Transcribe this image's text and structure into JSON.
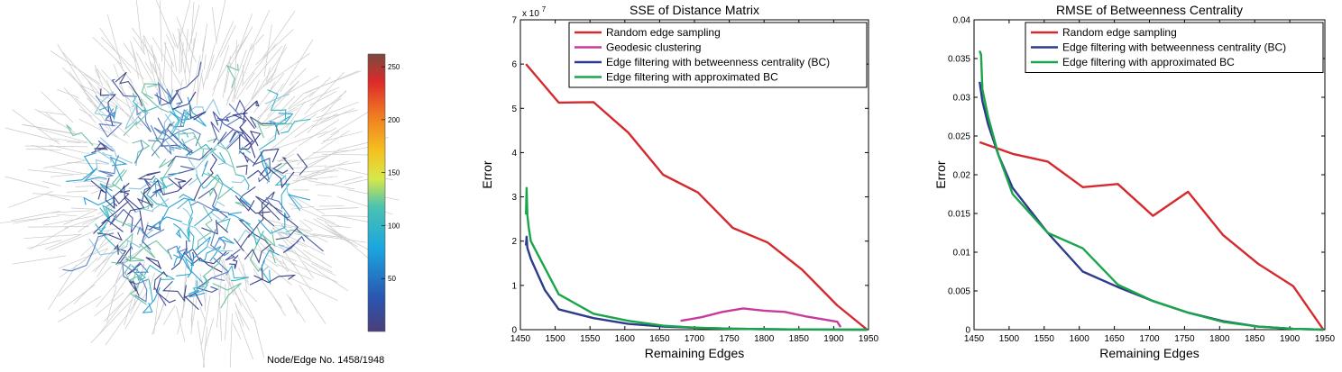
{
  "graph_view": {
    "caption": "Node/Edge No. 1458/1948",
    "colorbar": {
      "ticks": [
        50,
        100,
        150,
        200,
        250
      ],
      "min": 0,
      "max": 262
    }
  },
  "chart_data": [
    {
      "type": "line",
      "title": "SSE of Distance Matrix",
      "xlabel": "Remaining Edges",
      "ylabel": "Error",
      "y_multiplier": "x 10",
      "y_exponent": "7",
      "xlim": [
        1450,
        1950
      ],
      "ylim": [
        0,
        7
      ],
      "xticks": [
        1450,
        1500,
        1550,
        1600,
        1650,
        1700,
        1750,
        1800,
        1850,
        1900,
        1950
      ],
      "yticks": [
        0,
        1,
        2,
        3,
        4,
        5,
        6,
        7
      ],
      "legend_position": "top-right",
      "series": [
        {
          "name": "Random edge sampling",
          "color": "#d42a2f",
          "x": [
            1458,
            1505,
            1555,
            1605,
            1655,
            1705,
            1755,
            1805,
            1855,
            1905,
            1948
          ],
          "y": [
            6.0,
            5.13,
            5.14,
            4.45,
            3.5,
            3.1,
            2.3,
            1.97,
            1.35,
            0.55,
            0.0
          ]
        },
        {
          "name": "Geodesic clustering",
          "color": "#c93a9c",
          "x": [
            1680,
            1710,
            1740,
            1770,
            1800,
            1830,
            1860,
            1890,
            1905,
            1910
          ],
          "y": [
            0.2,
            0.28,
            0.4,
            0.48,
            0.43,
            0.4,
            0.3,
            0.22,
            0.18,
            0.06
          ]
        },
        {
          "name": "Edge filtering with betweenness centrality (BC)",
          "color": "#2e3b8c",
          "x": [
            1458,
            1459,
            1460,
            1465,
            1475,
            1485,
            1505,
            1555,
            1605,
            1655,
            1705,
            1755,
            1805,
            1855,
            1905,
            1948
          ],
          "y": [
            1.9,
            2.1,
            1.85,
            1.6,
            1.25,
            0.9,
            0.46,
            0.26,
            0.13,
            0.07,
            0.04,
            0.02,
            0.01,
            0.005,
            0.002,
            0.0
          ]
        },
        {
          "name": "Edge filtering with approximated BC",
          "color": "#1aa54a",
          "x": [
            1458,
            1459,
            1460,
            1462,
            1465,
            1470,
            1485,
            1505,
            1555,
            1605,
            1655,
            1705,
            1755,
            1805,
            1855,
            1905,
            1948
          ],
          "y": [
            2.6,
            3.2,
            2.6,
            2.3,
            2.0,
            1.85,
            1.4,
            0.8,
            0.36,
            0.2,
            0.09,
            0.04,
            0.02,
            0.01,
            0.005,
            0.002,
            0.0
          ]
        }
      ]
    },
    {
      "type": "line",
      "title": "RMSE of Betweenness Centrality",
      "xlabel": "Remaining Edges",
      "ylabel": "Error",
      "xlim": [
        1450,
        1950
      ],
      "ylim": [
        0,
        0.04
      ],
      "xticks": [
        1450,
        1500,
        1550,
        1600,
        1650,
        1700,
        1750,
        1800,
        1850,
        1900,
        1950
      ],
      "yticks": [
        0,
        0.005,
        0.01,
        0.015,
        0.02,
        0.025,
        0.03,
        0.035,
        0.04
      ],
      "legend_position": "top-right",
      "series": [
        {
          "name": "Random edge sampling",
          "color": "#d42a2f",
          "x": [
            1458,
            1505,
            1555,
            1605,
            1655,
            1705,
            1755,
            1805,
            1855,
            1905,
            1948
          ],
          "y": [
            0.0242,
            0.0227,
            0.0217,
            0.0184,
            0.0188,
            0.0147,
            0.0178,
            0.0122,
            0.0085,
            0.0056,
            0.0
          ]
        },
        {
          "name": "Edge filtering with betweenness centrality (BC)",
          "color": "#2e3b8c",
          "x": [
            1458,
            1462,
            1470,
            1485,
            1505,
            1555,
            1605,
            1655,
            1705,
            1755,
            1805,
            1855,
            1905,
            1948
          ],
          "y": [
            0.032,
            0.0295,
            0.0265,
            0.0225,
            0.0183,
            0.0125,
            0.0075,
            0.0055,
            0.0037,
            0.0022,
            0.0011,
            0.0004,
            0.0001,
            0.0
          ]
        },
        {
          "name": "Edge filtering with approximated BC",
          "color": "#1aa54a",
          "x": [
            1458,
            1460,
            1462,
            1470,
            1485,
            1505,
            1555,
            1605,
            1655,
            1705,
            1755,
            1805,
            1855,
            1905,
            1948
          ],
          "y": [
            0.036,
            0.0355,
            0.031,
            0.0275,
            0.0225,
            0.0175,
            0.0125,
            0.0105,
            0.0058,
            0.0037,
            0.0022,
            0.001,
            0.0004,
            0.0001,
            0.0
          ]
        }
      ]
    }
  ]
}
